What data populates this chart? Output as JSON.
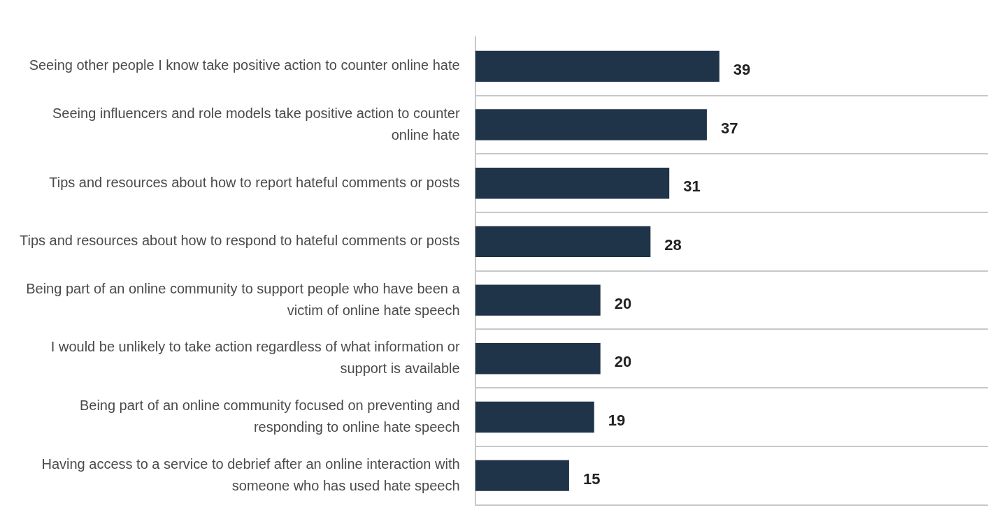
{
  "chart_data": {
    "type": "bar",
    "orientation": "horizontal",
    "categories": [
      "Seeing other people I know take positive action to counter online hate",
      "Seeing influencers and role models take positive action to counter online hate",
      "Tips and resources about how to report hateful comments or posts",
      "Tips and resources about how to respond to hateful comments or posts",
      "Being part of an online community to support people who have been a victim of online hate speech",
      "I would be unlikely to take action regardless of what information or support is available",
      "Being part of an online community focused on preventing and responding to online hate speech",
      "Having access to a service to debrief after an online interaction with someone who has used hate speech"
    ],
    "values": [
      39,
      37,
      31,
      28,
      20,
      20,
      19,
      15
    ],
    "color": "#1f3349",
    "data_labels": true,
    "grid": "y",
    "legend": false
  }
}
